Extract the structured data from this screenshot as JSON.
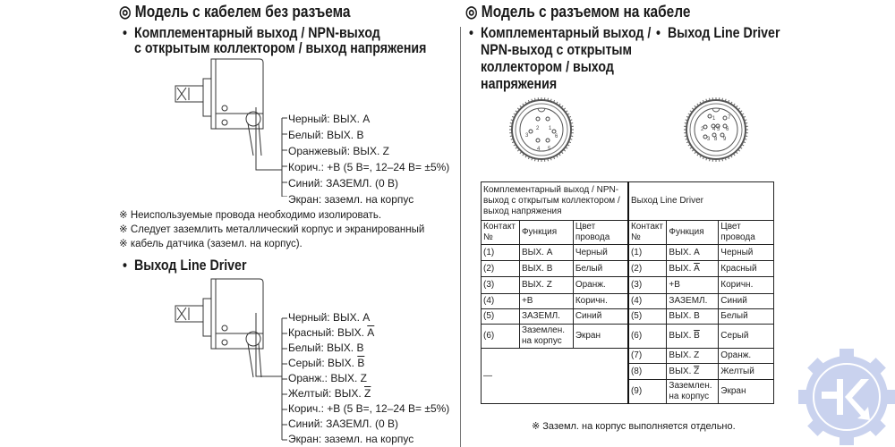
{
  "left": {
    "title": "◎ Модель с кабелем без разъема",
    "section1": {
      "bullet": "•",
      "line1": "Комплементарный выход / NPN-выход",
      "line2": "с открытым коллектором / выход напряжения"
    },
    "wires1": [
      {
        "prefix": "Черный: ВЫХ. A",
        "bar": ""
      },
      {
        "prefix": "Белый: ВЫХ. B",
        "bar": ""
      },
      {
        "prefix": "Оранжевый: ВЫХ. Z",
        "bar": ""
      },
      {
        "prefix": "Корич.: +В (5 В=, 12–24 В= ±5%)",
        "bar": ""
      },
      {
        "prefix": "Синий: ЗАЗЕМЛ. (0 В)",
        "bar": ""
      },
      {
        "prefix": "Экран: заземл. на корпус",
        "bar": ""
      }
    ],
    "notes": [
      "※ Неиспользуемые провода необходимо изолировать.",
      "※ Следует заземлить металлический корпус и экранированный",
      "※ кабель датчика (заземл. на корпус)."
    ],
    "section2": {
      "bullet": "•",
      "title": "Выход Line Driver"
    },
    "wires2": [
      {
        "prefix": "Черный: ВЫХ. A",
        "bar": ""
      },
      {
        "prefix": "Красный: ВЫХ. ",
        "bar": "A"
      },
      {
        "prefix": "Белый: ВЫХ. B",
        "bar": ""
      },
      {
        "prefix": "Серый: ВЫХ. ",
        "bar": "B"
      },
      {
        "prefix": "Оранж.: ВЫХ. Z",
        "bar": ""
      },
      {
        "prefix": "Желтый: ВЫХ. ",
        "bar": "Z"
      },
      {
        "prefix": "Корич.: +В (5 В=, 12–24 В= ±5%)",
        "bar": ""
      },
      {
        "prefix": "Синий: ЗАЗЕМЛ. (0 В)",
        "bar": ""
      },
      {
        "prefix": "Экран: заземл. на корпус",
        "bar": ""
      }
    ]
  },
  "right": {
    "title": "◎ Модель с разъемом на кабеле",
    "section1": {
      "bullet": "•",
      "lines": [
        "Комплементарный выход /",
        "NPN-выход с открытым",
        "коллектором / выход",
        "напряжения"
      ]
    },
    "section2": {
      "bullet": "•",
      "title": "Выход Line Driver"
    },
    "connector1_pins": [
      "1",
      "2",
      "3",
      "4",
      "5",
      "6"
    ],
    "connector2_pins": [
      "1",
      "2",
      "3",
      "4",
      "5",
      "6",
      "7",
      "8",
      "9"
    ],
    "table": {
      "group1": "Комплементарный выход / NPN-выход с открытым коллектором / выход напряжения",
      "group2": "Выход Line Driver",
      "headers": [
        "Контакт №",
        "Функция",
        "Цвет провода"
      ],
      "left_rows": [
        {
          "pin": "(1)",
          "func": "ВЫХ. A",
          "bar": "",
          "color": "Черный"
        },
        {
          "pin": "(2)",
          "func": "ВЫХ. B",
          "bar": "",
          "color": "Белый"
        },
        {
          "pin": "(3)",
          "func": "ВЫХ. Z",
          "bar": "",
          "color": "Оранж."
        },
        {
          "pin": "(4)",
          "func": "+В",
          "bar": "",
          "color": "Коричн."
        },
        {
          "pin": "(5)",
          "func": "ЗАЗЕМЛ.",
          "bar": "",
          "color": "Синий"
        },
        {
          "pin": "(6)",
          "func": "Заземлен. на корпус",
          "bar": "",
          "color": "Экран"
        }
      ],
      "left_empty": "—",
      "right_rows": [
        {
          "pin": "(1)",
          "func": "ВЫХ. A",
          "bar": "",
          "color": "Черный"
        },
        {
          "pin": "(2)",
          "func": "ВЫХ. ",
          "bar": "A",
          "color": "Красный"
        },
        {
          "pin": "(3)",
          "func": "+В",
          "bar": "",
          "color": "Коричн."
        },
        {
          "pin": "(4)",
          "func": "ЗАЗЕМЛ.",
          "bar": "",
          "color": "Синий"
        },
        {
          "pin": "(5)",
          "func": "ВЫХ. B",
          "bar": "",
          "color": "Белый"
        },
        {
          "pin": "(6)",
          "func": "ВЫХ. ",
          "bar": "B",
          "color": "Серый"
        },
        {
          "pin": "(7)",
          "func": "ВЫХ. Z",
          "bar": "",
          "color": "Оранж."
        },
        {
          "pin": "(8)",
          "func": "ВЫХ. ",
          "bar": "Z",
          "color": "Желтый"
        },
        {
          "pin": "(9)",
          "func": "Заземлен. на корпус",
          "bar": "",
          "color": "Экран"
        }
      ]
    },
    "footnote": "※ Заземл. на корпус выполняется отдельно."
  },
  "logo": {
    "name": "gear-k-logo",
    "color": "#c9d2ee",
    "letter": "K"
  }
}
